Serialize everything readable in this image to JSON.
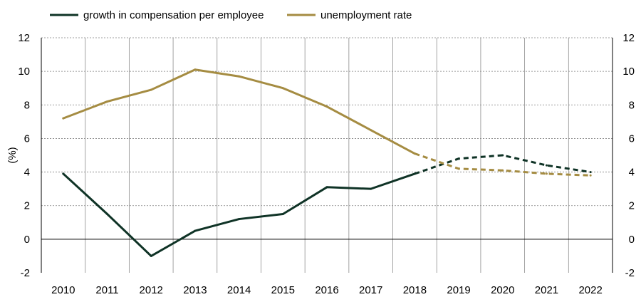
{
  "chart_data": {
    "type": "line",
    "title": "",
    "xlabel": "",
    "ylabel": "(%)",
    "ylim": [
      -2,
      12
    ],
    "y2lim": [
      -2,
      12
    ],
    "yticks": [
      "-2",
      "0",
      "2",
      "4",
      "6",
      "8",
      "10",
      "12"
    ],
    "y2ticks": [
      "-2",
      "0",
      "2",
      "4",
      "6",
      "8",
      "10",
      "12"
    ],
    "categories": [
      "2010",
      "2011",
      "2012",
      "2013",
      "2014",
      "2015",
      "2016",
      "2017",
      "2018",
      "2019",
      "2020",
      "2021",
      "2022"
    ],
    "projection_starts_after": "2018",
    "legend_position": "top-left",
    "grid": {
      "horizontal": true,
      "vertical": true
    },
    "series": [
      {
        "name": "growth in compensation per employee",
        "color": "#0f3326",
        "values": [
          3.9,
          1.5,
          -1.0,
          0.5,
          1.2,
          1.5,
          3.1,
          3.0,
          3.9,
          4.8,
          5.0,
          4.4,
          4.0
        ]
      },
      {
        "name": "unemployment rate",
        "color": "#a58c42",
        "values": [
          7.2,
          8.2,
          8.9,
          10.1,
          9.7,
          9.0,
          7.9,
          6.5,
          5.1,
          4.2,
          4.1,
          3.9,
          3.8
        ]
      }
    ]
  }
}
